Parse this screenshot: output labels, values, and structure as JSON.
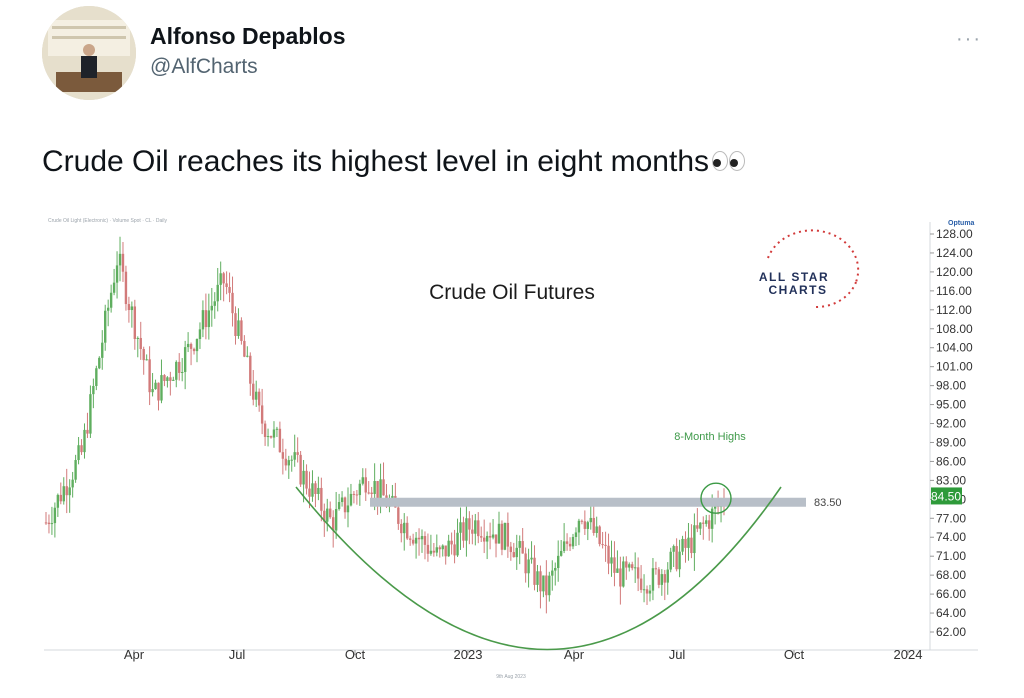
{
  "author": {
    "name": "Alfonso Depablos",
    "handle": "@AlfCharts"
  },
  "menu_icon": "more-horizontal-icon",
  "tweet": {
    "text": "Crude Oil reaches its highest level in eight months",
    "emoji": "eyes-emoji"
  },
  "chart_data": {
    "type": "candlestick",
    "title": "Crude Oil Futures",
    "header_text": "Crude Oil Light (Electronic) · Volume Spot · CL · Daily",
    "footer_text": "9th Aug 2023",
    "logo_text": [
      "ALL STAR",
      "CHARTS"
    ],
    "brand": "Optuma",
    "x_ticks": [
      "Apr",
      "Jul",
      "Oct",
      "2023",
      "Apr",
      "Jul",
      "Oct",
      "2024"
    ],
    "y_ticks": [
      "128.00",
      "124.00",
      "120.00",
      "116.00",
      "112.00",
      "108.00",
      "104.00",
      "101.00",
      "98.00",
      "95.00",
      "92.00",
      "89.00",
      "86.00",
      "83.00",
      "80.00",
      "77.00",
      "74.00",
      "71.00",
      "68.00",
      "66.00",
      "64.00",
      "62.00"
    ],
    "ylim": [
      61,
      130
    ],
    "resistance": {
      "value": 83.5,
      "label": "83.50"
    },
    "current_price": {
      "value": 84.5,
      "label": "84.50"
    },
    "annotation": "8-Month Highs",
    "colors": {
      "up": "#5fae5f",
      "down": "#d27a7a",
      "resistance": "#b8bfc8",
      "arc": "#4a9a4a",
      "price_badge": "#2e9a3a"
    },
    "series": [
      {
        "x": "2022-01",
        "close": 80
      },
      {
        "x": "2022-02",
        "close": 92
      },
      {
        "x": "2022-03",
        "close": 126
      },
      {
        "x": "2022-04",
        "close": 102
      },
      {
        "x": "2022-05",
        "close": 110
      },
      {
        "x": "2022-06",
        "close": 122
      },
      {
        "x": "2022-07",
        "close": 98
      },
      {
        "x": "2022-08",
        "close": 90
      },
      {
        "x": "2022-09",
        "close": 80
      },
      {
        "x": "2022-10",
        "close": 88
      },
      {
        "x": "2022-11",
        "close": 80
      },
      {
        "x": "2022-12",
        "close": 74
      },
      {
        "x": "2023-01",
        "close": 80
      },
      {
        "x": "2023-02",
        "close": 77
      },
      {
        "x": "2023-03",
        "close": 68
      },
      {
        "x": "2023-04",
        "close": 82
      },
      {
        "x": "2023-05",
        "close": 71
      },
      {
        "x": "2023-06",
        "close": 70
      },
      {
        "x": "2023-07",
        "close": 76
      },
      {
        "x": "2023-08",
        "close": 84
      }
    ]
  }
}
